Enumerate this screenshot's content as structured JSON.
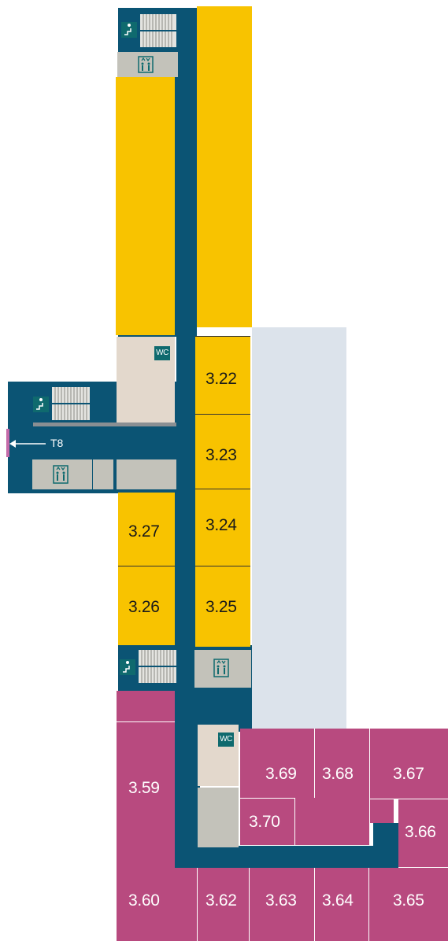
{
  "colors": {
    "corridor": "#0b5474",
    "yellow_rooms": "#f8c300",
    "plum_rooms": "#b84a7f",
    "service": "#c3c2ba",
    "wc_room": "#e3d8cc",
    "courtyard": "#dce3eb"
  },
  "icons": [
    "stairs-icon",
    "elevator-icon",
    "wc-icon",
    "arrow-left-icon"
  ],
  "signs": {
    "wc": "WC",
    "exit_arrow": "T8"
  },
  "rooms": {
    "r322": "3.22",
    "r323": "3.23",
    "r324": "3.24",
    "r325": "3.25",
    "r326": "3.26",
    "r327": "3.27",
    "r359": "3.59",
    "r360": "3.60",
    "r362": "3.62",
    "r363": "3.63",
    "r364": "3.64",
    "r365": "3.65",
    "r366": "3.66",
    "r367": "3.67",
    "r368": "3.68",
    "r369": "3.69",
    "r370": "3.70"
  }
}
